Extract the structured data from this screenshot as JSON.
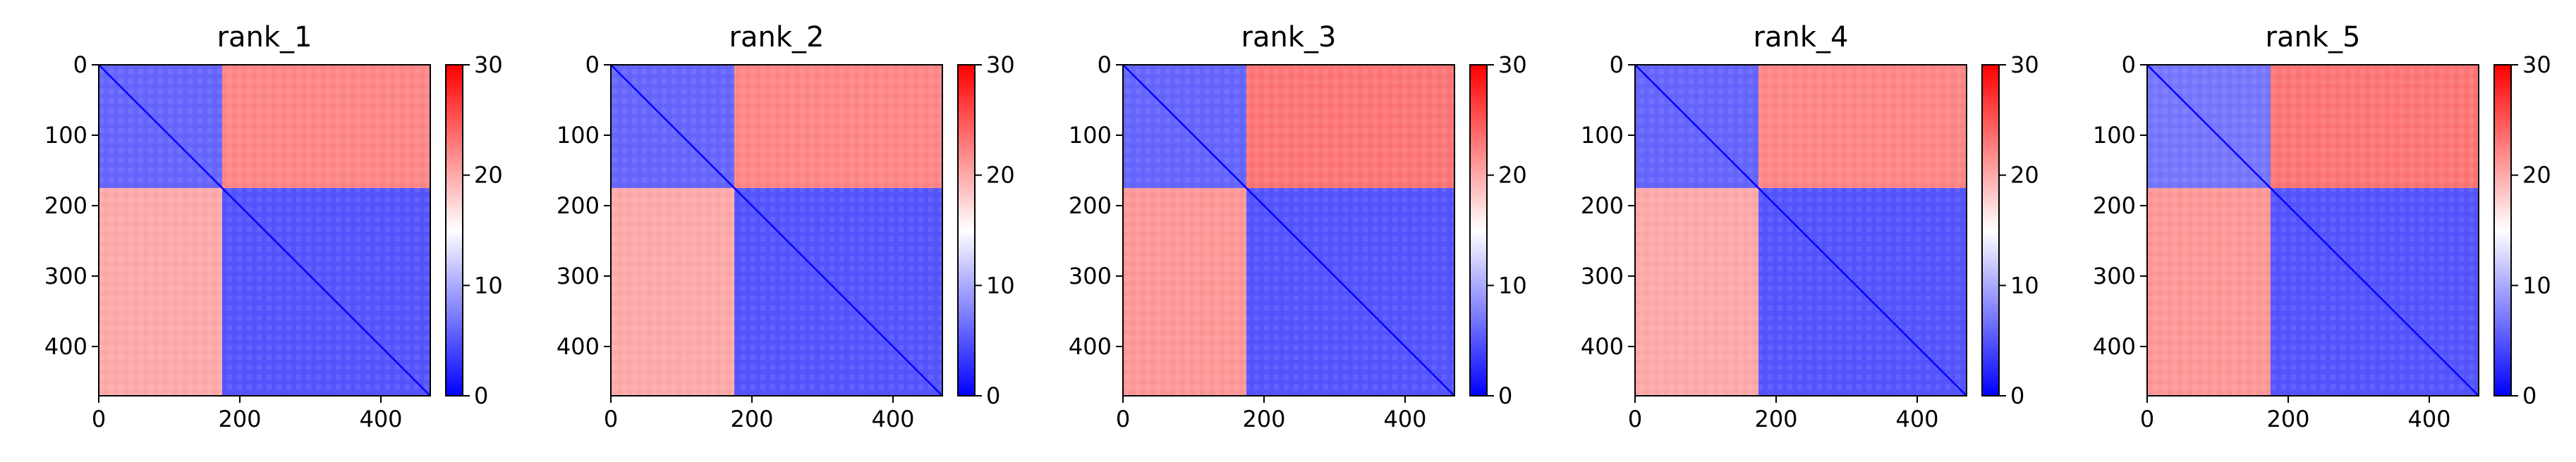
{
  "figure": {
    "description_type": "pae-heatmaps"
  },
  "chart_data": [
    {
      "type": "heatmap",
      "title": "rank_1",
      "xlim": [
        0,
        470
      ],
      "ylim": [
        470,
        0
      ],
      "x_ticks": [
        0,
        200,
        400
      ],
      "y_ticks": [
        0,
        100,
        200,
        300,
        400
      ],
      "colorbar": {
        "min": 0,
        "max": 30,
        "ticks": [
          0,
          10,
          20,
          30
        ],
        "colormap": "bwr"
      },
      "grid": false,
      "blocks": [
        {
          "x": [
            0,
            175
          ],
          "y": [
            0,
            175
          ],
          "value": 6
        },
        {
          "x": [
            175,
            470
          ],
          "y": [
            0,
            175
          ],
          "value": 22
        },
        {
          "x": [
            0,
            175
          ],
          "y": [
            175,
            470
          ],
          "value": 20
        },
        {
          "x": [
            175,
            470
          ],
          "y": [
            175,
            470
          ],
          "value": 5
        }
      ]
    },
    {
      "type": "heatmap",
      "title": "rank_2",
      "xlim": [
        0,
        470
      ],
      "ylim": [
        470,
        0
      ],
      "x_ticks": [
        0,
        200,
        400
      ],
      "y_ticks": [
        0,
        100,
        200,
        300,
        400
      ],
      "colorbar": {
        "min": 0,
        "max": 30,
        "ticks": [
          0,
          10,
          20,
          30
        ],
        "colormap": "bwr"
      },
      "grid": false,
      "blocks": [
        {
          "x": [
            0,
            175
          ],
          "y": [
            0,
            175
          ],
          "value": 6
        },
        {
          "x": [
            175,
            470
          ],
          "y": [
            0,
            175
          ],
          "value": 22
        },
        {
          "x": [
            0,
            175
          ],
          "y": [
            175,
            470
          ],
          "value": 20
        },
        {
          "x": [
            175,
            470
          ],
          "y": [
            175,
            470
          ],
          "value": 5
        }
      ]
    },
    {
      "type": "heatmap",
      "title": "rank_3",
      "xlim": [
        0,
        470
      ],
      "ylim": [
        470,
        0
      ],
      "x_ticks": [
        0,
        200,
        400
      ],
      "y_ticks": [
        0,
        100,
        200,
        300,
        400
      ],
      "colorbar": {
        "min": 0,
        "max": 30,
        "ticks": [
          0,
          10,
          20,
          30
        ],
        "colormap": "bwr"
      },
      "grid": false,
      "blocks": [
        {
          "x": [
            0,
            175
          ],
          "y": [
            0,
            175
          ],
          "value": 6
        },
        {
          "x": [
            175,
            470
          ],
          "y": [
            0,
            175
          ],
          "value": 23
        },
        {
          "x": [
            0,
            175
          ],
          "y": [
            175,
            470
          ],
          "value": 21
        },
        {
          "x": [
            175,
            470
          ],
          "y": [
            175,
            470
          ],
          "value": 5
        }
      ]
    },
    {
      "type": "heatmap",
      "title": "rank_4",
      "xlim": [
        0,
        470
      ],
      "ylim": [
        470,
        0
      ],
      "x_ticks": [
        0,
        200,
        400
      ],
      "y_ticks": [
        0,
        100,
        200,
        300,
        400
      ],
      "colorbar": {
        "min": 0,
        "max": 30,
        "ticks": [
          0,
          10,
          20,
          30
        ],
        "colormap": "bwr"
      },
      "grid": false,
      "blocks": [
        {
          "x": [
            0,
            175
          ],
          "y": [
            0,
            175
          ],
          "value": 6
        },
        {
          "x": [
            175,
            470
          ],
          "y": [
            0,
            175
          ],
          "value": 22
        },
        {
          "x": [
            0,
            175
          ],
          "y": [
            175,
            470
          ],
          "value": 20
        },
        {
          "x": [
            175,
            470
          ],
          "y": [
            175,
            470
          ],
          "value": 5
        }
      ]
    },
    {
      "type": "heatmap",
      "title": "rank_5",
      "xlim": [
        0,
        470
      ],
      "ylim": [
        470,
        0
      ],
      "x_ticks": [
        0,
        200,
        400
      ],
      "y_ticks": [
        0,
        100,
        200,
        300,
        400
      ],
      "colorbar": {
        "min": 0,
        "max": 30,
        "ticks": [
          0,
          10,
          20,
          30
        ],
        "colormap": "bwr"
      },
      "grid": false,
      "blocks": [
        {
          "x": [
            0,
            175
          ],
          "y": [
            0,
            175
          ],
          "value": 7
        },
        {
          "x": [
            175,
            470
          ],
          "y": [
            0,
            175
          ],
          "value": 23
        },
        {
          "x": [
            0,
            175
          ],
          "y": [
            175,
            470
          ],
          "value": 21
        },
        {
          "x": [
            175,
            470
          ],
          "y": [
            175,
            470
          ],
          "value": 5
        }
      ]
    }
  ],
  "colors": {
    "low": "#0000ff",
    "mid": "#ffffff",
    "high": "#ff0000"
  }
}
